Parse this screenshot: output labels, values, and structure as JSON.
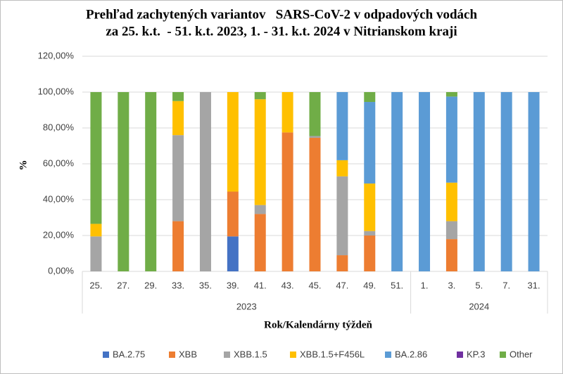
{
  "chart_data": {
    "type": "stacked-bar",
    "title": [
      "Prehľad zachytených variantov   SARS-CoV-2 v odpadových vodách",
      "za 25. k.t.  - 51. k.t. 2023, 1. - 31. k.t. 2024 v Nitrianskom kraji"
    ],
    "x_label": "Rok/Kalendárny týždeň",
    "y_label": "%",
    "groups": [
      {
        "label": "2023",
        "categories": [
          "25.",
          "27.",
          "29.",
          "33.",
          "35.",
          "39.",
          "41.",
          "43.",
          "45.",
          "47.",
          "49.",
          "51."
        ]
      },
      {
        "label": "2024",
        "categories": [
          "1.",
          "3.",
          "5.",
          "7.",
          "31."
        ]
      }
    ],
    "series": [
      {
        "name": "BA.2.75",
        "color": "#4472c4",
        "values": [
          0,
          0,
          0,
          0,
          0,
          19.5,
          0,
          0,
          0,
          0,
          0,
          0,
          0,
          0,
          0,
          0,
          0
        ]
      },
      {
        "name": "XBB",
        "color": "#ed7d31",
        "values": [
          0,
          0,
          0,
          28,
          0,
          25,
          32,
          77.5,
          74.5,
          9,
          20,
          0,
          0,
          18,
          0,
          0,
          0
        ]
      },
      {
        "name": "XBB.1.5",
        "color": "#a5a5a5",
        "values": [
          19.5,
          0,
          0,
          48,
          100,
          0,
          5,
          0,
          1,
          44,
          2.5,
          0,
          0,
          10,
          0,
          0,
          0
        ]
      },
      {
        "name": "XBB.1.5+F456L",
        "color": "#ffc000",
        "values": [
          7,
          0,
          0,
          19,
          0,
          55.5,
          59,
          22.5,
          0,
          9,
          26.5,
          0,
          0,
          21.5,
          0,
          0,
          0
        ]
      },
      {
        "name": "BA.2.86",
        "color": "#5b9bd5",
        "values": [
          0,
          0,
          0,
          0,
          0,
          0,
          0,
          0,
          0,
          38,
          45.5,
          100,
          100,
          48,
          100,
          100,
          100
        ]
      },
      {
        "name": "KP.3",
        "color": "#7030a0",
        "values": [
          0,
          0,
          0,
          0,
          0,
          0,
          0,
          0,
          0,
          0,
          0,
          0,
          0,
          0,
          0,
          0,
          0
        ]
      },
      {
        "name": "Other",
        "color": "#70ad47",
        "values": [
          73.5,
          100,
          100,
          5,
          0,
          0,
          4,
          0,
          24.5,
          0,
          5.5,
          0,
          0,
          2.5,
          0,
          0,
          0
        ]
      }
    ],
    "ylim": [
      0,
      120
    ],
    "yticks": [
      {
        "value": 0,
        "label": "0,00%"
      },
      {
        "value": 20,
        "label": "20,00%"
      },
      {
        "value": 40,
        "label": "40,00%"
      },
      {
        "value": 60,
        "label": "60,00%"
      },
      {
        "value": 80,
        "label": "80,00%"
      },
      {
        "value": 100,
        "label": "100,00%"
      },
      {
        "value": 120,
        "label": "120,00%"
      }
    ],
    "grid": true
  }
}
